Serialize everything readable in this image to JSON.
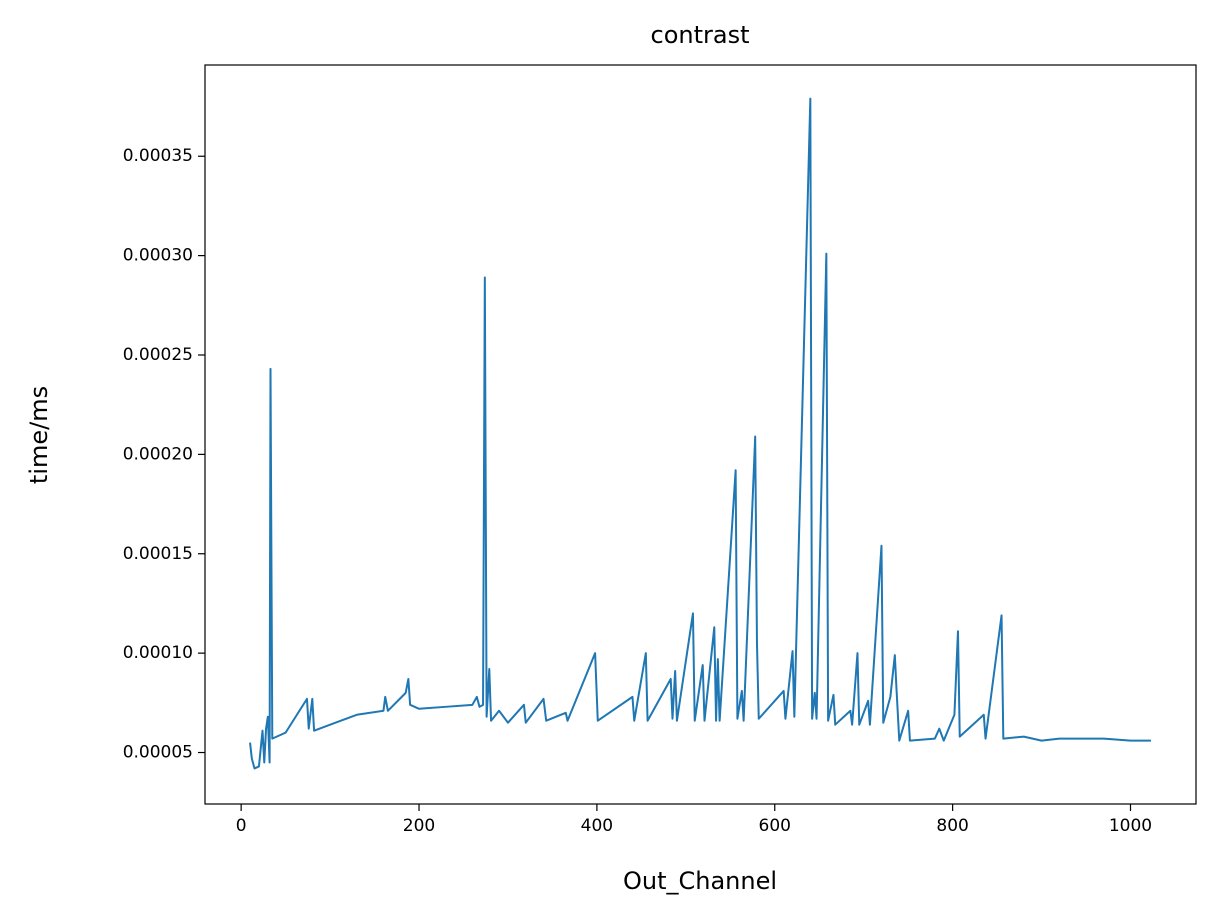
{
  "chart_data": {
    "type": "line",
    "title": "contrast",
    "x_label": "Out_Channel",
    "y_label": "time/ms",
    "color": "#1f77b4",
    "x": [
      10,
      12,
      15,
      20,
      24,
      26,
      28,
      30,
      32,
      33,
      35,
      40,
      50,
      74,
      76,
      80,
      82,
      100,
      130,
      160,
      162,
      165,
      185,
      188,
      190,
      200,
      230,
      260,
      265,
      268,
      272,
      274,
      276,
      279,
      281,
      290,
      300,
      318,
      320,
      340,
      343,
      365,
      367,
      398,
      401,
      440,
      442,
      455,
      457,
      483,
      485,
      488,
      490,
      508,
      510,
      519,
      521,
      532,
      534,
      536,
      538,
      556,
      558,
      563,
      565,
      578,
      580,
      582,
      610,
      612,
      620,
      622,
      640,
      642,
      645,
      647,
      658,
      660,
      666,
      668,
      685,
      687,
      693,
      695,
      705,
      707,
      720,
      722,
      730,
      735,
      737,
      740,
      750,
      752,
      780,
      785,
      790,
      802,
      806,
      808,
      835,
      837,
      855,
      857,
      880,
      900,
      920,
      970,
      1000,
      1023
    ],
    "values": [
      5.5e-05,
      4.7e-05,
      4.2e-05,
      4.3e-05,
      6.1e-05,
      4.5e-05,
      6.2e-05,
      6.8e-05,
      4.5e-05,
      0.000243,
      5.7e-05,
      5.8e-05,
      6e-05,
      7.7e-05,
      6.2e-05,
      7.7e-05,
      6.1e-05,
      6.4e-05,
      6.9e-05,
      7.1e-05,
      7.8e-05,
      7.1e-05,
      8e-05,
      8.7e-05,
      7.4e-05,
      7.2e-05,
      7.3e-05,
      7.4e-05,
      7.8e-05,
      7.3e-05,
      7.4e-05,
      0.000289,
      6.8e-05,
      9.2e-05,
      6.6e-05,
      7.1e-05,
      6.5e-05,
      7.4e-05,
      6.5e-05,
      7.7e-05,
      6.6e-05,
      7e-05,
      6.6e-05,
      0.0001,
      6.6e-05,
      7.8e-05,
      6.6e-05,
      0.0001,
      6.6e-05,
      8.7e-05,
      6.7e-05,
      9.1e-05,
      6.6e-05,
      0.00012,
      6.6e-05,
      9.4e-05,
      6.6e-05,
      0.000113,
      6.6e-05,
      9.7e-05,
      6.6e-05,
      0.000192,
      6.7e-05,
      8.1e-05,
      6.6e-05,
      0.000209,
      0.000105,
      6.7e-05,
      8.1e-05,
      6.7e-05,
      0.000101,
      6.8e-05,
      0.000379,
      6.7e-05,
      8e-05,
      6.7e-05,
      0.000301,
      6.6e-05,
      7.9e-05,
      6.4e-05,
      7.1e-05,
      6.4e-05,
      0.0001,
      6.4e-05,
      7.6e-05,
      6.4e-05,
      0.000154,
      6.5e-05,
      7.8e-05,
      9.9e-05,
      8.1e-05,
      5.6e-05,
      7.1e-05,
      5.6e-05,
      5.7e-05,
      6.2e-05,
      5.6e-05,
      6.9e-05,
      0.000111,
      5.8e-05,
      6.9e-05,
      5.7e-05,
      0.000119,
      5.7e-05,
      5.8e-05,
      5.6e-05,
      5.7e-05,
      5.7e-05,
      5.6e-05,
      5.6e-05
    ],
    "xlim": [
      -40.65,
      1073.65
    ],
    "ylim": [
      2.41e-05,
      0.0003959
    ],
    "xticks": [
      0,
      200,
      400,
      600,
      800,
      1000
    ],
    "yticks": [
      {
        "value": 5e-05,
        "label": "0.00005"
      },
      {
        "value": 0.0001,
        "label": "0.00010"
      },
      {
        "value": 0.00015,
        "label": "0.00015"
      },
      {
        "value": 0.0002,
        "label": "0.00020"
      },
      {
        "value": 0.00025,
        "label": "0.00025"
      },
      {
        "value": 0.0003,
        "label": "0.00030"
      },
      {
        "value": 0.00035,
        "label": "0.00035"
      }
    ]
  }
}
